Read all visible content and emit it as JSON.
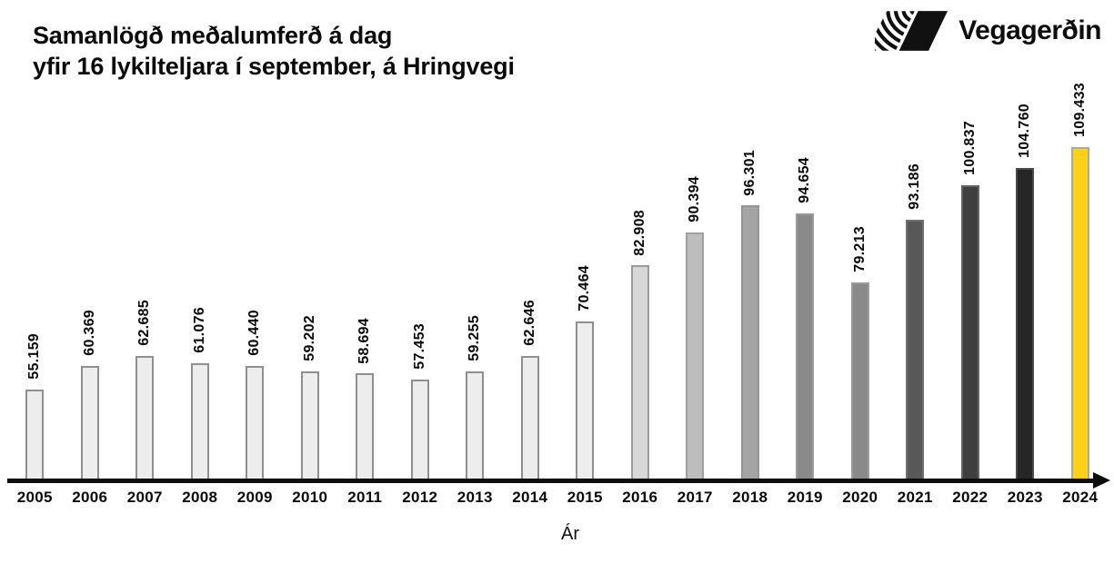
{
  "header": {
    "title_line1": "Samanlögð meðalumferð á dag",
    "title_line2": "yfir 16 lykilteljara í september, á Hringvegi",
    "logo_text": "Vegagerðin"
  },
  "chart_data": {
    "type": "bar",
    "title": "Samanlögð meðalumferð á dag yfir 16 lykilteljara í september, á Hringvegi",
    "xlabel": "Ár",
    "ylabel": "",
    "categories": [
      "2005",
      "2006",
      "2007",
      "2008",
      "2009",
      "2010",
      "2011",
      "2012",
      "2013",
      "2014",
      "2015",
      "2016",
      "2017",
      "2018",
      "2019",
      "2020",
      "2021",
      "2022",
      "2023",
      "2024"
    ],
    "values": [
      55159,
      60369,
      62685,
      61076,
      60440,
      59202,
      58694,
      57453,
      59255,
      62646,
      70464,
      82908,
      90394,
      96301,
      94654,
      79213,
      93186,
      100837,
      104760,
      109433
    ],
    "value_labels": [
      "55.159",
      "60.369",
      "62.685",
      "61.076",
      "60.440",
      "59.202",
      "58.694",
      "57.453",
      "59.255",
      "62.646",
      "70.464",
      "82.908",
      "90.394",
      "96.301",
      "94.654",
      "79.213",
      "93.186",
      "100.837",
      "104.760",
      "109.433"
    ],
    "bar_colors": [
      "#ededed",
      "#ededed",
      "#ededed",
      "#ededed",
      "#ededed",
      "#ededed",
      "#ededed",
      "#ededed",
      "#ededed",
      "#ededed",
      "#ededed",
      "#d7d7d7",
      "#bdbdbd",
      "#a4a4a4",
      "#8a8a8a",
      "#8a8a8a",
      "#585858",
      "#3f3f3f",
      "#262626",
      "#fdd116"
    ],
    "bar_border_colors": [
      "#8f8f8f",
      "#8f8f8f",
      "#8f8f8f",
      "#8f8f8f",
      "#8f8f8f",
      "#8f8f8f",
      "#8f8f8f",
      "#8f8f8f",
      "#8f8f8f",
      "#8f8f8f",
      "#8f8f8f",
      "#9c9c9c",
      "#a0a0a0",
      "#969696",
      "#9b9b9b",
      "#9b9b9b",
      "#6f6f6f",
      "#636363",
      "#4a4a4a",
      "#a9a9a9"
    ],
    "highlight_category": "2024",
    "highlight_color": "#fdd116",
    "ylim": [
      34800,
      110000
    ],
    "grid": "off",
    "legend": "none",
    "value_label_rotation_deg": 90
  }
}
